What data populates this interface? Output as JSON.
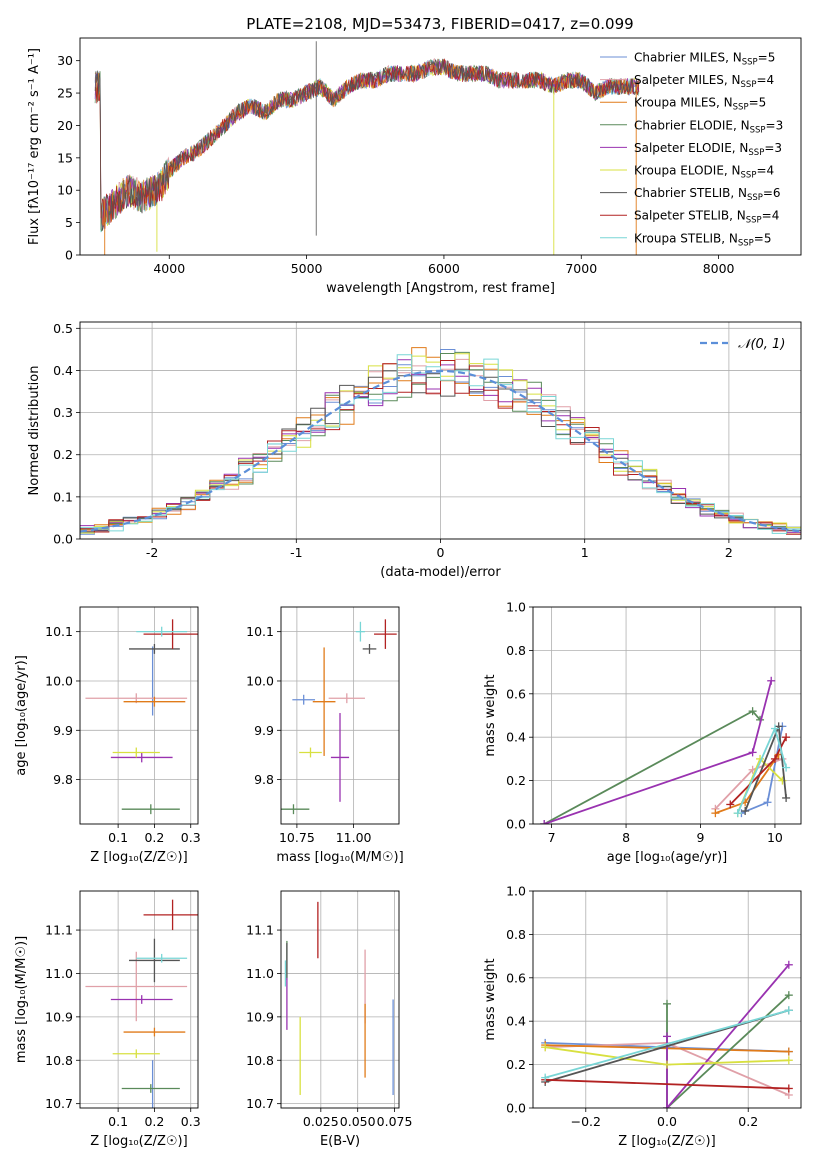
{
  "figure_title": "PLATE=2108, MJD=53473, FIBERID=0417, z=0.099",
  "colors": {
    "Chabrier MILES": "#6b8fd6",
    "Salpeter MILES": "#e0a0a8",
    "Kroupa MILES": "#e07b1a",
    "Chabrier ELODIE": "#5a8a5a",
    "Salpeter ELODIE": "#9932b0",
    "Kroupa ELODIE": "#d8e040",
    "Chabrier STELIB": "#555555",
    "Salpeter STELIB": "#b22222",
    "Kroupa STELIB": "#79d6d6"
  },
  "chart_data": [
    {
      "id": "spectrum",
      "type": "line",
      "title": "PLATE=2108, MJD=53473, FIBERID=0417, z=0.099",
      "xlabel": "wavelength [Angstrom, rest frame]",
      "ylabel": "Flux [fλ10⁻¹⁷ erg cm⁻² s⁻¹ A⁻¹]",
      "xlim": [
        3350,
        8600
      ],
      "ylim": [
        0,
        33.5
      ],
      "xticks": [
        4000,
        5000,
        6000,
        7000,
        8000
      ],
      "yticks": [
        0,
        5,
        10,
        15,
        20,
        25,
        30
      ],
      "legend_position": "right",
      "legend": [
        {
          "label": "Chabrier MILES, N",
          "nssp": "=5",
          "color": "#6b8fd6"
        },
        {
          "label": "Salpeter MILES, N",
          "nssp": "=4",
          "color": "#e0a0a8"
        },
        {
          "label": "Kroupa MILES, N",
          "nssp": "=5",
          "color": "#e07b1a"
        },
        {
          "label": "Chabrier ELODIE, N",
          "nssp": "=3",
          "color": "#5a8a5a"
        },
        {
          "label": "Salpeter ELODIE, N",
          "nssp": "=3",
          "color": "#9932b0"
        },
        {
          "label": "Kroupa ELODIE, N",
          "nssp": "=4",
          "color": "#d8e040"
        },
        {
          "label": "Chabrier STELIB, N",
          "nssp": "=6",
          "color": "#555555"
        },
        {
          "label": "Salpeter STELIB, N",
          "nssp": "=4",
          "color": "#b22222"
        },
        {
          "label": "Kroupa STELIB, N",
          "nssp": "=5",
          "color": "#79d6d6"
        }
      ],
      "envelope": [
        [
          3500,
          6
        ],
        [
          3600,
          8
        ],
        [
          3700,
          10
        ],
        [
          3800,
          9
        ],
        [
          3900,
          10
        ],
        [
          3950,
          11
        ],
        [
          4000,
          13
        ],
        [
          4100,
          15
        ],
        [
          4200,
          16
        ],
        [
          4300,
          18
        ],
        [
          4400,
          20
        ],
        [
          4500,
          22
        ],
        [
          4600,
          23
        ],
        [
          4700,
          22
        ],
        [
          4800,
          24
        ],
        [
          4900,
          24
        ],
        [
          5000,
          25
        ],
        [
          5100,
          26
        ],
        [
          5200,
          24
        ],
        [
          5300,
          26
        ],
        [
          5400,
          27
        ],
        [
          5500,
          27
        ],
        [
          5600,
          28
        ],
        [
          5700,
          28
        ],
        [
          5800,
          28
        ],
        [
          5900,
          29
        ],
        [
          6000,
          29
        ],
        [
          6100,
          28
        ],
        [
          6200,
          28
        ],
        [
          6300,
          28
        ],
        [
          6400,
          27
        ],
        [
          6500,
          27
        ],
        [
          6600,
          27
        ],
        [
          6700,
          27
        ],
        [
          6800,
          26
        ],
        [
          6900,
          27
        ],
        [
          7000,
          27
        ],
        [
          7100,
          25
        ],
        [
          7200,
          26
        ],
        [
          7300,
          26
        ],
        [
          7400,
          26
        ]
      ],
      "spikes": [
        [
          5070,
          33
        ],
        [
          5070,
          3
        ],
        [
          3520,
          0
        ],
        [
          3900,
          1
        ],
        [
          6800,
          0
        ],
        [
          7400,
          0
        ]
      ]
    },
    {
      "id": "residuals",
      "type": "bar",
      "xlabel": "(data-model)/error",
      "ylabel": "Normed distribution",
      "xlim": [
        -2.5,
        2.5
      ],
      "ylim": [
        0,
        0.515
      ],
      "xticks": [
        -2,
        -1,
        0,
        1,
        2
      ],
      "yticks": [
        0.0,
        0.1,
        0.2,
        0.3,
        0.4,
        0.5
      ],
      "legend": [
        {
          "label": "𝒩(0, 1)",
          "color": "#5b8fd9",
          "style": "dashed"
        }
      ],
      "bin_width": 0.1,
      "gaussian": {
        "mean": 0,
        "sigma": 1
      }
    },
    {
      "id": "age-vs-Z",
      "type": "scatter",
      "xlabel": "Z [log₁₀(Z/Z☉)]",
      "ylabel": "age  [log₁₀(age/yr)]",
      "xlim": [
        -0.005,
        0.32
      ],
      "ylim": [
        9.71,
        10.15
      ],
      "xticks": [
        0.1,
        0.2,
        0.3
      ],
      "yticks": [
        9.8,
        9.9,
        10.0,
        10.1
      ],
      "points": [
        {
          "color": "#6b8fd6",
          "x": 0.195,
          "y": 10.0,
          "xerr": 0.0,
          "yerr": 0.07
        },
        {
          "color": "#e0a0a8",
          "x": 0.15,
          "y": 9.965,
          "xerr": 0.14,
          "yerr": 0.01
        },
        {
          "color": "#e07b1a",
          "x": 0.2,
          "y": 9.958,
          "xerr": 0.085,
          "yerr": 0.01
        },
        {
          "color": "#5a8a5a",
          "x": 0.19,
          "y": 9.74,
          "xerr": 0.08,
          "yerr": 0.01
        },
        {
          "color": "#9932b0",
          "x": 0.165,
          "y": 9.845,
          "xerr": 0.085,
          "yerr": 0.01
        },
        {
          "color": "#d8e040",
          "x": 0.15,
          "y": 9.855,
          "xerr": 0.065,
          "yerr": 0.01
        },
        {
          "color": "#555555",
          "x": 0.2,
          "y": 10.065,
          "xerr": 0.07,
          "yerr": 0.01
        },
        {
          "color": "#b22222",
          "x": 0.25,
          "y": 10.095,
          "xerr": 0.08,
          "yerr": 0.03
        },
        {
          "color": "#79d6d6",
          "x": 0.22,
          "y": 10.1,
          "xerr": 0.07,
          "yerr": 0.01
        }
      ]
    },
    {
      "id": "age-vs-mass",
      "type": "scatter",
      "xlabel": "mass [log₁₀(M/M☉)]",
      "ylabel": "",
      "xlim": [
        10.68,
        11.2
      ],
      "ylim": [
        9.71,
        10.15
      ],
      "xticks": [
        10.75,
        11.0
      ],
      "yticks": [
        9.8,
        9.9,
        10.0,
        10.1
      ],
      "points": [
        {
          "color": "#6b8fd6",
          "x": 10.78,
          "y": 9.962,
          "xerr": 0.05,
          "yerr": 0.01
        },
        {
          "color": "#e0a0a8",
          "x": 10.97,
          "y": 9.965,
          "xerr": 0.08,
          "yerr": 0.01
        },
        {
          "color": "#e07b1a",
          "x": 10.87,
          "y": 9.958,
          "xerr": 0.05,
          "yerr": 0.11
        },
        {
          "color": "#5a8a5a",
          "x": 10.735,
          "y": 9.74,
          "xerr": 0.07,
          "yerr": 0.01
        },
        {
          "color": "#9932b0",
          "x": 10.94,
          "y": 9.845,
          "xerr": 0.04,
          "yerr": 0.09
        },
        {
          "color": "#d8e040",
          "x": 10.81,
          "y": 9.855,
          "xerr": 0.05,
          "yerr": 0.01
        },
        {
          "color": "#555555",
          "x": 11.07,
          "y": 10.065,
          "xerr": 0.03,
          "yerr": 0.01
        },
        {
          "color": "#b22222",
          "x": 11.14,
          "y": 10.095,
          "xerr": 0.05,
          "yerr": 0.03
        },
        {
          "color": "#79d6d6",
          "x": 11.03,
          "y": 10.1,
          "xerr": 0.02,
          "yerr": 0.02
        }
      ]
    },
    {
      "id": "massweight-vs-age",
      "type": "line",
      "xlabel": "age  [log₁₀(age/yr)]",
      "ylabel": "mass weight",
      "xlim": [
        6.75,
        10.35
      ],
      "ylim": [
        0,
        1.0
      ],
      "xticks": [
        7,
        8,
        9,
        10
      ],
      "yticks": [
        0.0,
        0.2,
        0.4,
        0.6,
        0.8,
        1.0
      ],
      "series": [
        {
          "color": "#6b8fd6",
          "x": [
            9.55,
            9.9,
            10.1
          ],
          "y": [
            0.05,
            0.1,
            0.45
          ]
        },
        {
          "color": "#e0a0a8",
          "x": [
            9.2,
            9.7,
            10.1
          ],
          "y": [
            0.07,
            0.25,
            0.3
          ]
        },
        {
          "color": "#e07b1a",
          "x": [
            9.2,
            9.6,
            10.05
          ],
          "y": [
            0.05,
            0.1,
            0.32
          ]
        },
        {
          "color": "#5a8a5a",
          "x": [
            6.9,
            9.7,
            9.8
          ],
          "y": [
            0.0,
            0.52,
            0.48
          ]
        },
        {
          "color": "#9932b0",
          "x": [
            6.9,
            9.7,
            9.95
          ],
          "y": [
            0.0,
            0.33,
            0.66
          ]
        },
        {
          "color": "#d8e040",
          "x": [
            9.5,
            9.8,
            10.1
          ],
          "y": [
            0.05,
            0.3,
            0.2
          ]
        },
        {
          "color": "#555555",
          "x": [
            9.6,
            10.05,
            10.15
          ],
          "y": [
            0.06,
            0.45,
            0.12
          ]
        },
        {
          "color": "#b22222",
          "x": [
            9.4,
            10.0,
            10.15
          ],
          "y": [
            0.09,
            0.3,
            0.4
          ]
        },
        {
          "color": "#79d6d6",
          "x": [
            9.5,
            10.0,
            10.15
          ],
          "y": [
            0.05,
            0.44,
            0.26
          ]
        }
      ]
    },
    {
      "id": "mass-vs-Z",
      "type": "scatter",
      "xlabel": "Z [log₁₀(Z/Z☉)]",
      "ylabel": "mass [log₁₀(M/M☉)]",
      "xlim": [
        -0.005,
        0.32
      ],
      "ylim": [
        10.69,
        11.19
      ],
      "xticks": [
        0.1,
        0.2,
        0.3
      ],
      "yticks": [
        10.7,
        10.8,
        10.9,
        11.0,
        11.1
      ],
      "points": [
        {
          "color": "#6b8fd6",
          "x": 0.195,
          "y": 10.74,
          "xerr": 0.0,
          "yerr": 0.06
        },
        {
          "color": "#e0a0a8",
          "x": 0.15,
          "y": 10.97,
          "xerr": 0.14,
          "yerr": 0.08
        },
        {
          "color": "#e07b1a",
          "x": 0.2,
          "y": 10.865,
          "xerr": 0.085,
          "yerr": 0.01
        },
        {
          "color": "#5a8a5a",
          "x": 0.19,
          "y": 10.735,
          "xerr": 0.08,
          "yerr": 0.01
        },
        {
          "color": "#9932b0",
          "x": 0.165,
          "y": 10.94,
          "xerr": 0.085,
          "yerr": 0.01
        },
        {
          "color": "#d8e040",
          "x": 0.15,
          "y": 10.815,
          "xerr": 0.065,
          "yerr": 0.01
        },
        {
          "color": "#555555",
          "x": 0.2,
          "y": 11.03,
          "xerr": 0.07,
          "yerr": 0.05
        },
        {
          "color": "#b22222",
          "x": 0.25,
          "y": 11.135,
          "xerr": 0.08,
          "yerr": 0.035
        },
        {
          "color": "#79d6d6",
          "x": 0.22,
          "y": 11.035,
          "xerr": 0.07,
          "yerr": 0.01
        }
      ]
    },
    {
      "id": "mass-vs-EBV",
      "type": "scatter",
      "xlabel": "E(B-V)",
      "ylabel": "",
      "xlim": [
        -0.002,
        0.078
      ],
      "ylim": [
        10.69,
        11.19
      ],
      "xticks": [
        0.025,
        0.05,
        0.075
      ],
      "yticks": [
        10.7,
        10.8,
        10.9,
        11.0,
        11.1
      ],
      "points": [
        {
          "color": "#6b8fd6",
          "x": 0.074,
          "y": 10.83,
          "xerr": 0.0,
          "yerr": 0.11
        },
        {
          "color": "#e0a0a8",
          "x": 0.055,
          "y": 10.97,
          "xerr": 0.0,
          "yerr": 0.085
        },
        {
          "color": "#e07b1a",
          "x": 0.055,
          "y": 10.845,
          "xerr": 0.0,
          "yerr": 0.085
        },
        {
          "color": "#5a8a5a",
          "x": 0.002,
          "y": 11.03,
          "xerr": 0.0,
          "yerr": 0.045
        },
        {
          "color": "#9932b0",
          "x": 0.002,
          "y": 10.93,
          "xerr": 0.0,
          "yerr": 0.06
        },
        {
          "color": "#d8e040",
          "x": 0.011,
          "y": 10.81,
          "xerr": 0.0,
          "yerr": 0.09
        },
        {
          "color": "#555555",
          "x": 0.002,
          "y": 11.03,
          "xerr": 0.0,
          "yerr": 0.04
        },
        {
          "color": "#b22222",
          "x": 0.023,
          "y": 11.1,
          "xerr": 0.0,
          "yerr": 0.065
        },
        {
          "color": "#79d6d6",
          "x": 0.001,
          "y": 11.0,
          "xerr": 0.0,
          "yerr": 0.03
        }
      ]
    },
    {
      "id": "massweight-vs-Z",
      "type": "line",
      "xlabel": "Z [log₁₀(Z/Z☉)]",
      "ylabel": "mass weight",
      "xlim": [
        -0.33,
        0.33
      ],
      "ylim": [
        0,
        1.0
      ],
      "xticks": [
        -0.2,
        0.0,
        0.2
      ],
      "yticks": [
        0.0,
        0.2,
        0.4,
        0.6,
        0.8,
        1.0
      ],
      "series": [
        {
          "color": "#6b8fd6",
          "x": [
            -0.3,
            0.3
          ],
          "y": [
            0.3,
            0.26
          ]
        },
        {
          "color": "#e0a0a8",
          "x": [
            -0.3,
            0.0,
            0.3
          ],
          "y": [
            0.28,
            0.3,
            0.06
          ]
        },
        {
          "color": "#e07b1a",
          "x": [
            -0.3,
            0.3
          ],
          "y": [
            0.29,
            0.26
          ]
        },
        {
          "color": "#5a8a5a",
          "x": [
            0.0,
            0.0,
            0.3
          ],
          "y": [
            0.48,
            0.0,
            0.52
          ]
        },
        {
          "color": "#9932b0",
          "x": [
            0.0,
            0.0,
            0.3
          ],
          "y": [
            0.33,
            0.0,
            0.66
          ]
        },
        {
          "color": "#d8e040",
          "x": [
            -0.3,
            0.0,
            0.3
          ],
          "y": [
            0.28,
            0.2,
            0.22
          ]
        },
        {
          "color": "#555555",
          "x": [
            -0.3,
            0.3
          ],
          "y": [
            0.12,
            0.45
          ]
        },
        {
          "color": "#b22222",
          "x": [
            -0.3,
            0.3
          ],
          "y": [
            0.13,
            0.09
          ]
        },
        {
          "color": "#79d6d6",
          "x": [
            -0.3,
            0.3
          ],
          "y": [
            0.14,
            0.45
          ]
        }
      ]
    }
  ]
}
